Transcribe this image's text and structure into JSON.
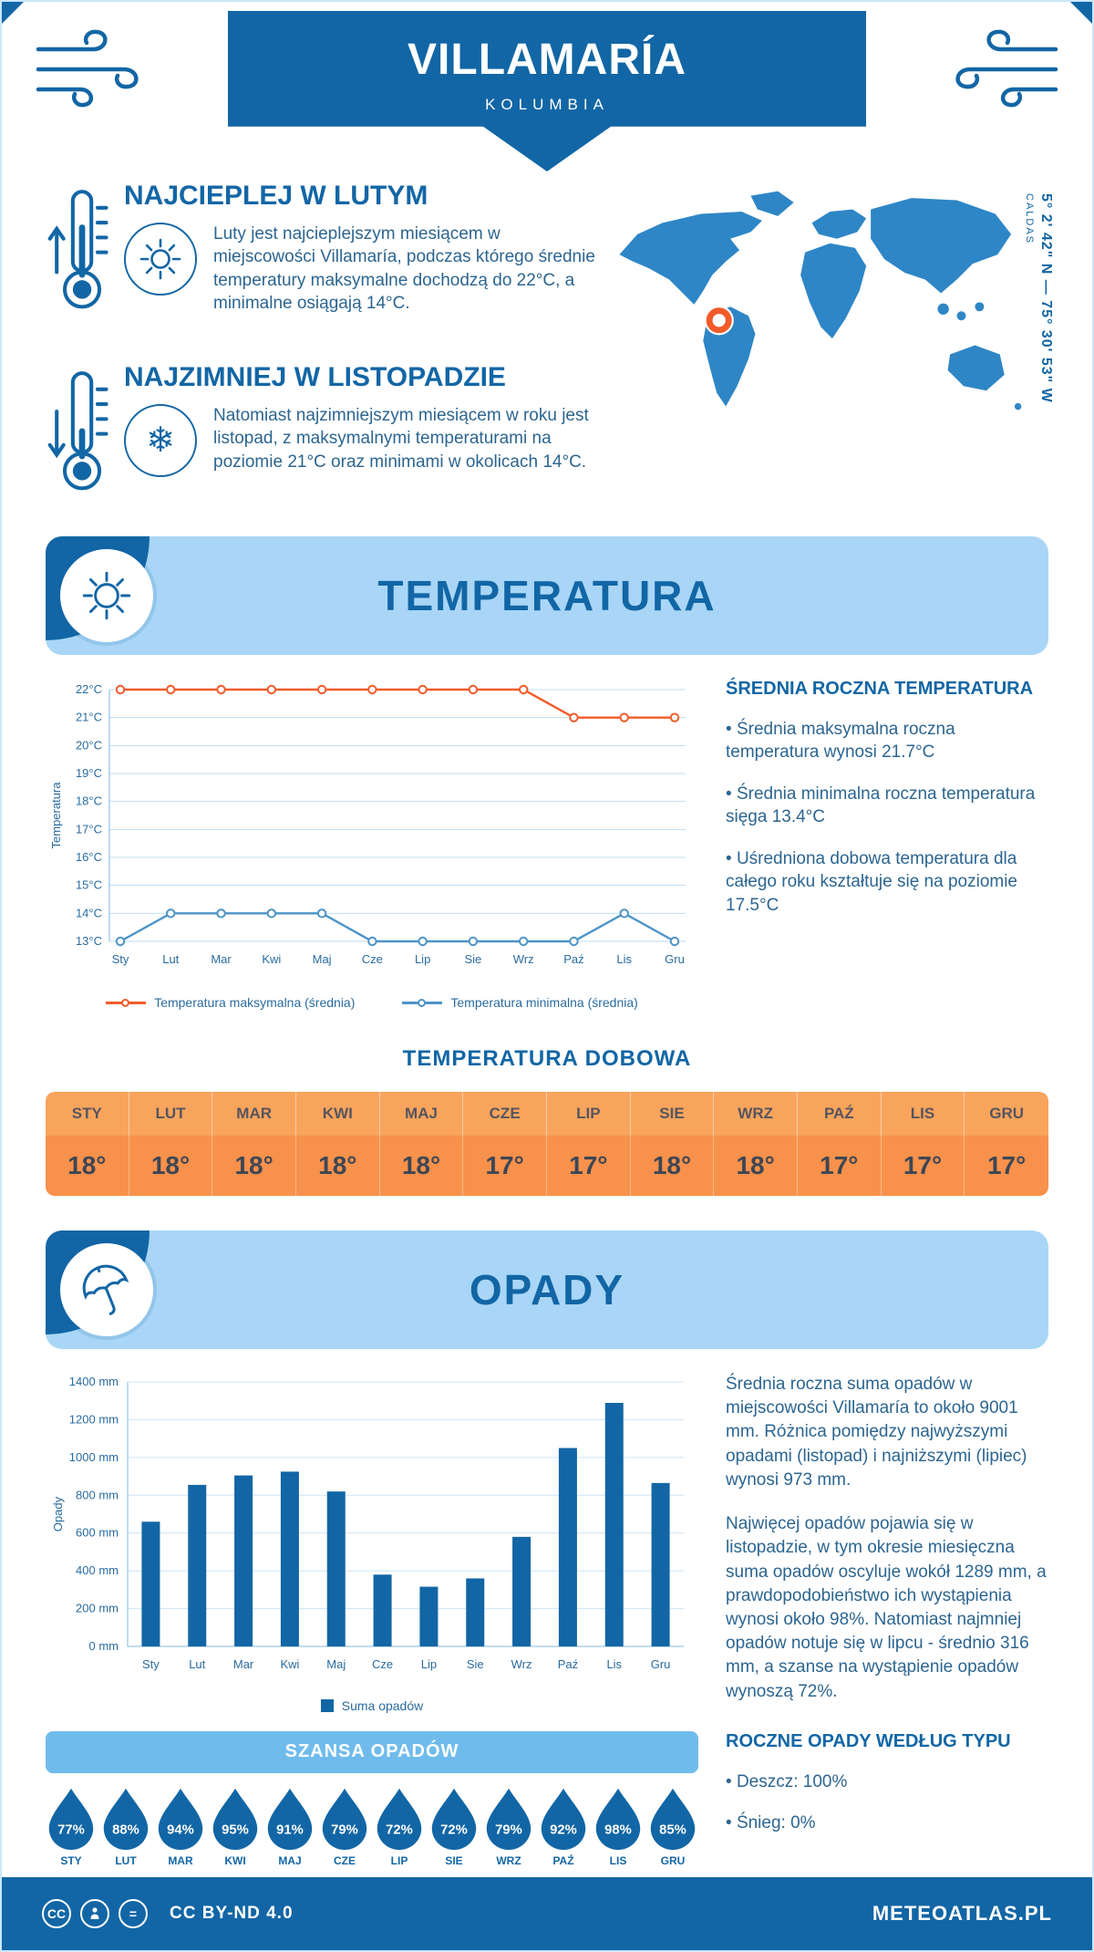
{
  "header": {
    "title": "VILLAMARÍA",
    "subtitle": "KOLUMBIA"
  },
  "intro": {
    "warm_title": "NAJCIEPLEJ W LUTYM",
    "warm_text": "Luty jest najcieplejszym miesiącem w miejscowości Villamaría, podczas którego średnie temperatury maksymalne dochodzą do 22°C, a minimalne osiągają 14°C.",
    "cold_title": "NAJZIMNIEJ W LISTOPADZIE",
    "cold_text": "Natomiast najzimniejszym miesiącem w roku jest listopad, z maksymalnymi temperaturami na poziomie 21°C oraz minimami w okolicach 14°C.",
    "coordinates": "5° 2' 42\" N — 75° 30' 53\" W",
    "region": "CALDAS"
  },
  "temperature": {
    "section_title": "TEMPERATURA",
    "summary_title": "ŚREDNIA ROCZNA TEMPERATURA",
    "bullets": [
      "Średnia maksymalna roczna temperatura wynosi 21.7°C",
      "Średnia minimalna roczna temperatura sięga 13.4°C",
      "Uśredniona dobowa temperatura dla całego roku kształtuje się na poziomie 17.5°C"
    ],
    "daily_title": "TEMPERATURA DOBOWA",
    "daily": {
      "months": [
        "STY",
        "LUT",
        "MAR",
        "KWI",
        "MAJ",
        "CZE",
        "LIP",
        "SIE",
        "WRZ",
        "PAŹ",
        "LIS",
        "GRU"
      ],
      "values": [
        "18°",
        "18°",
        "18°",
        "18°",
        "18°",
        "17°",
        "17°",
        "18°",
        "18°",
        "17°",
        "17°",
        "17°"
      ]
    }
  },
  "precipitation": {
    "section_title": "OPADY",
    "paragraph1": "Średnia roczna suma opadów w miejscowości Villamaría to około 9001 mm. Różnica pomiędzy najwyższymi opadami (listopad) i najniższymi (lipiec) wynosi 973 mm.",
    "paragraph2": "Najwięcej opadów pojawia się w listopadzie, w tym okresie miesięczna suma opadów oscyluje wokół 1289 mm, a prawdopodobieństwo ich wystąpienia wynosi około 98%. Natomiast najmniej opadów notuje się w lipcu - średnio 316 mm, a szanse na wystąpienie opadów wynoszą 72%.",
    "chance_title": "SZANSA OPADÓW",
    "chance": {
      "months": [
        "STY",
        "LUT",
        "MAR",
        "KWI",
        "MAJ",
        "CZE",
        "LIP",
        "SIE",
        "WRZ",
        "PAŹ",
        "LIS",
        "GRU"
      ],
      "values": [
        "77%",
        "88%",
        "94%",
        "95%",
        "91%",
        "79%",
        "72%",
        "72%",
        "79%",
        "92%",
        "98%",
        "85%"
      ]
    },
    "type_title": "ROCZNE OPADY WEDŁUG TYPU",
    "type_bullets": [
      "Deszcz: 100%",
      "Śnieg: 0%"
    ]
  },
  "footer": {
    "license": "CC BY-ND 4.0",
    "site": "METEOATLAS.PL"
  },
  "colors": {
    "primary": "#1266A5",
    "light_banner": "#A9D6F6",
    "max_line": "#F15B2B",
    "min_line": "#4D94C7",
    "bar": "#1266A5",
    "table_header_bg": "#F9A45C",
    "table_value_bg": "#F8914B",
    "chance_banner_bg": "#6FBCEC",
    "marker_ring": "#F15B2A"
  },
  "chart_data": [
    {
      "type": "line",
      "title": "Średnia temperatura miesięczna",
      "x": [
        "Sty",
        "Lut",
        "Mar",
        "Kwi",
        "Maj",
        "Cze",
        "Lip",
        "Sie",
        "Wrz",
        "Paź",
        "Lis",
        "Gru"
      ],
      "xlabel": "",
      "ylabel": "Temperatura",
      "ylim": [
        13,
        22
      ],
      "ytick_step": 1,
      "ytick_suffix": "°C",
      "grid": true,
      "legend_position": "bottom",
      "series": [
        {
          "name": "Temperatura maksymalna (średnia)",
          "color": "#F15B2B",
          "values": [
            22,
            22,
            22,
            22,
            22,
            22,
            22,
            22,
            22,
            21,
            21,
            21
          ]
        },
        {
          "name": "Temperatura minimalna (średnia)",
          "color": "#4D94C7",
          "values": [
            13,
            14,
            14,
            14,
            14,
            13,
            13,
            13,
            13,
            13,
            14,
            13
          ]
        }
      ]
    },
    {
      "type": "bar",
      "title": "Miesięczna suma opadów",
      "x": [
        "Sty",
        "Lut",
        "Mar",
        "Kwi",
        "Maj",
        "Cze",
        "Lip",
        "Sie",
        "Wrz",
        "Paź",
        "Lis",
        "Gru"
      ],
      "xlabel": "",
      "ylabel": "Opady",
      "ylim": [
        0,
        1400
      ],
      "ytick_step": 200,
      "ytick_suffix": " mm",
      "grid": true,
      "legend_position": "bottom",
      "series": [
        {
          "name": "Suma opadów",
          "color": "#1266A5",
          "values": [
            660,
            855,
            905,
            925,
            820,
            380,
            316,
            360,
            580,
            1050,
            1289,
            865
          ]
        }
      ]
    }
  ]
}
